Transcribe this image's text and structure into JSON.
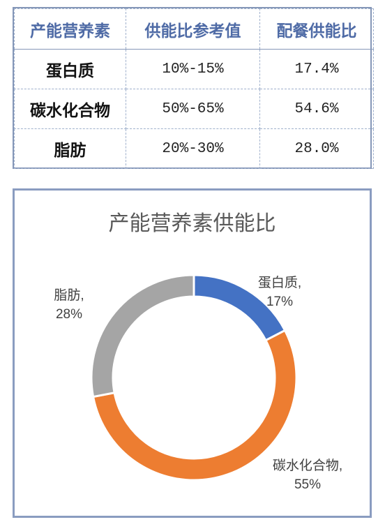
{
  "table": {
    "headers": [
      "产能营养素",
      "供能比参考值",
      "配餐供能比"
    ],
    "rows": [
      {
        "name": "蛋白质",
        "ref": "10%-15%",
        "actual": "17.4%"
      },
      {
        "name": "碳水化合物",
        "ref": "50%-65%",
        "actual": "54.6%"
      },
      {
        "name": "脂肪",
        "ref": "20%-30%",
        "actual": "28.0%"
      }
    ]
  },
  "chart_data": {
    "type": "pie",
    "subtype": "donut",
    "title": "产能营养素供能比",
    "categories": [
      "蛋白质",
      "碳水化合物",
      "脂肪"
    ],
    "values": [
      17.4,
      54.6,
      28.0
    ],
    "display_labels": [
      [
        "蛋白质,",
        "17%"
      ],
      [
        "碳水化合物,",
        "55%"
      ],
      [
        "脂肪,",
        "28%"
      ]
    ],
    "colors": [
      "#4472c4",
      "#ed7d31",
      "#a5a5a5"
    ],
    "start_angle": "12 o'clock, clockwise",
    "legend": "none"
  }
}
